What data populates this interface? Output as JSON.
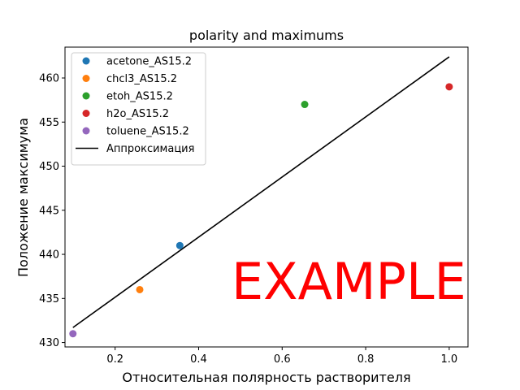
{
  "chart_data": {
    "type": "scatter",
    "title": "polarity and maximums",
    "xlabel": "Относительная полярность растворителя",
    "ylabel": "Положение максимума",
    "xlim": [
      0.08,
      1.045
    ],
    "ylim": [
      429.5,
      463.5
    ],
    "xticks": [
      0.2,
      0.4,
      0.6,
      0.8,
      1.0
    ],
    "xtick_labels": [
      "0.2",
      "0.4",
      "0.6",
      "0.8",
      "1.0"
    ],
    "yticks": [
      430,
      435,
      440,
      445,
      450,
      455,
      460
    ],
    "ytick_labels": [
      "430",
      "435",
      "440",
      "445",
      "450",
      "455",
      "460"
    ],
    "grid": false,
    "legend_position": "top-left",
    "series": [
      {
        "name": "acetone_AS15.2",
        "color": "#1f77b4",
        "x": [
          0.355
        ],
        "y": [
          441
        ]
      },
      {
        "name": "chcl3_AS15.2",
        "color": "#ff7f0e",
        "x": [
          0.259
        ],
        "y": [
          436
        ]
      },
      {
        "name": "etoh_AS15.2",
        "color": "#2ca02c",
        "x": [
          0.654
        ],
        "y": [
          457
        ]
      },
      {
        "name": "h2o_AS15.2",
        "color": "#d62728",
        "x": [
          1.0
        ],
        "y": [
          459
        ]
      },
      {
        "name": "toluene_AS15.2",
        "color": "#9467bd",
        "x": [
          0.099
        ],
        "y": [
          431
        ]
      }
    ],
    "fit_line": {
      "name": "Аппроксимация",
      "color": "#000000",
      "x": [
        0.099,
        1.0
      ],
      "y": [
        431.7,
        462.4
      ]
    },
    "watermark": "EXAMPLE"
  }
}
